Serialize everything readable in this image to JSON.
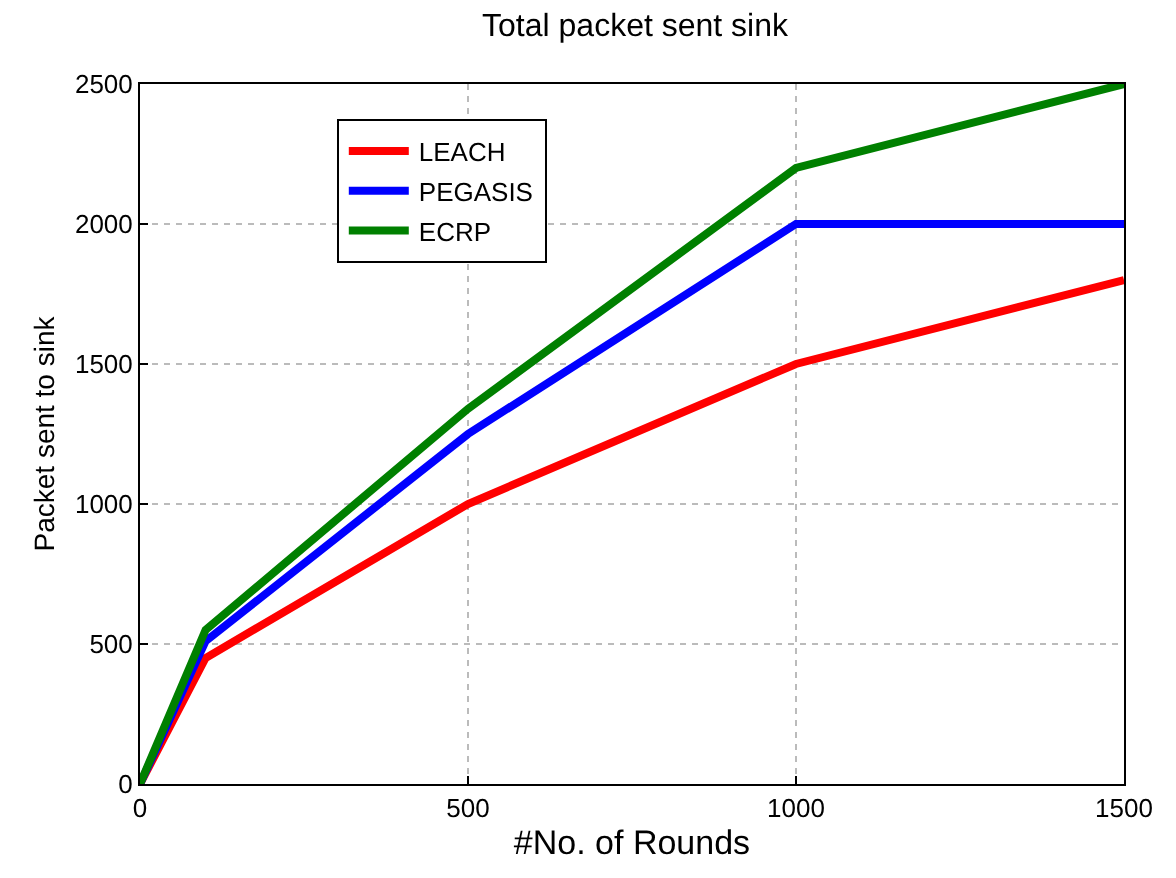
{
  "chart_data": {
    "type": "line",
    "title": "Total packet sent sink",
    "xlabel": "#No. of Rounds",
    "ylabel": "Packet sent to sink",
    "x": [
      0,
      100,
      500,
      1000,
      1500
    ],
    "series": [
      {
        "name": "LEACH",
        "color": "#ff0000",
        "values": [
          0,
          450,
          1000,
          1500,
          1800
        ]
      },
      {
        "name": "PEGASIS",
        "color": "#0000ff",
        "values": [
          0,
          510,
          1250,
          2000,
          2000
        ]
      },
      {
        "name": "ECRP",
        "color": "#008000",
        "values": [
          0,
          550,
          1340,
          2200,
          2500
        ]
      }
    ],
    "xlim": [
      0,
      1500
    ],
    "xticks": [
      0,
      500,
      1000,
      1500
    ],
    "ylim": [
      0,
      2500
    ],
    "yticks": [
      0,
      500,
      1000,
      1500,
      2000,
      2500
    ],
    "grid": true,
    "legend": "top left",
    "marker": "none",
    "line_style": "solid"
  }
}
